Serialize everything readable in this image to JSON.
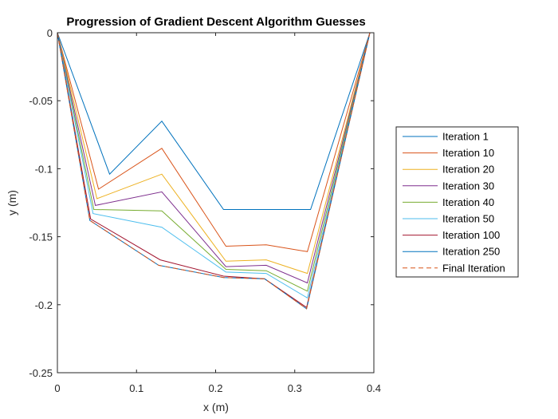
{
  "chart_data": {
    "type": "line",
    "title": "Progression of Gradient Descent Algorithm Guesses",
    "xlabel": "x (m)",
    "ylabel": "y (m)",
    "xlim": [
      0,
      0.4
    ],
    "ylim": [
      -0.25,
      0
    ],
    "xticks": [
      "0",
      "0.1",
      "0.2",
      "0.3",
      "0.4"
    ],
    "yticks": [
      "0",
      "-0.05",
      "-0.1",
      "-0.15",
      "-0.2",
      "-0.25"
    ],
    "xtick_values": [
      0,
      0.1,
      0.2,
      0.3,
      0.4
    ],
    "ytick_values": [
      0,
      -0.05,
      -0.1,
      -0.15,
      -0.2,
      -0.25
    ],
    "grid": false,
    "legend_position": "outside-right",
    "series": [
      {
        "name": "Iteration 1",
        "color": "#0072BD",
        "dash": false,
        "x": [
          0,
          0.066,
          0.132,
          0.21,
          0.264,
          0.32,
          0.395
        ],
        "y": [
          0,
          -0.104,
          -0.065,
          -0.13,
          -0.13,
          -0.13,
          0
        ]
      },
      {
        "name": "Iteration 10",
        "color": "#D95319",
        "dash": false,
        "x": [
          0,
          0.052,
          0.132,
          0.213,
          0.264,
          0.316,
          0.395
        ],
        "y": [
          0,
          -0.115,
          -0.085,
          -0.157,
          -0.156,
          -0.161,
          0
        ]
      },
      {
        "name": "Iteration 20",
        "color": "#EDB120",
        "dash": false,
        "x": [
          0,
          0.05,
          0.132,
          0.213,
          0.264,
          0.316,
          0.395
        ],
        "y": [
          0,
          -0.122,
          -0.104,
          -0.168,
          -0.167,
          -0.177,
          0
        ]
      },
      {
        "name": "Iteration 30",
        "color": "#7E2F8E",
        "dash": false,
        "x": [
          0,
          0.048,
          0.132,
          0.213,
          0.264,
          0.316,
          0.395
        ],
        "y": [
          0,
          -0.127,
          -0.117,
          -0.172,
          -0.171,
          -0.184,
          0
        ]
      },
      {
        "name": "Iteration 40",
        "color": "#77AC30",
        "dash": false,
        "x": [
          0,
          0.046,
          0.132,
          0.213,
          0.264,
          0.316,
          0.395
        ],
        "y": [
          0,
          -0.13,
          -0.131,
          -0.174,
          -0.175,
          -0.19,
          0
        ]
      },
      {
        "name": "Iteration 50",
        "color": "#4DBEEE",
        "dash": false,
        "x": [
          0,
          0.045,
          0.132,
          0.213,
          0.264,
          0.316,
          0.395
        ],
        "y": [
          0,
          -0.133,
          -0.143,
          -0.176,
          -0.177,
          -0.195,
          0
        ]
      },
      {
        "name": "Iteration 100",
        "color": "#A2142F",
        "dash": false,
        "x": [
          0,
          0.042,
          0.13,
          0.21,
          0.262,
          0.315,
          0.395
        ],
        "y": [
          0,
          -0.137,
          -0.167,
          -0.179,
          -0.181,
          -0.202,
          0
        ]
      },
      {
        "name": "Iteration 250",
        "color": "#0072BD",
        "dash": false,
        "x": [
          0,
          0.041,
          0.128,
          0.21,
          0.262,
          0.315,
          0.395
        ],
        "y": [
          0,
          -0.138,
          -0.171,
          -0.18,
          -0.181,
          -0.203,
          0
        ]
      },
      {
        "name": "Final Iteration",
        "color": "#D95319",
        "dash": true,
        "x": [
          0,
          0.041,
          0.128,
          0.21,
          0.262,
          0.315,
          0.395
        ],
        "y": [
          0,
          -0.138,
          -0.171,
          -0.18,
          -0.181,
          -0.203,
          0
        ]
      }
    ]
  }
}
